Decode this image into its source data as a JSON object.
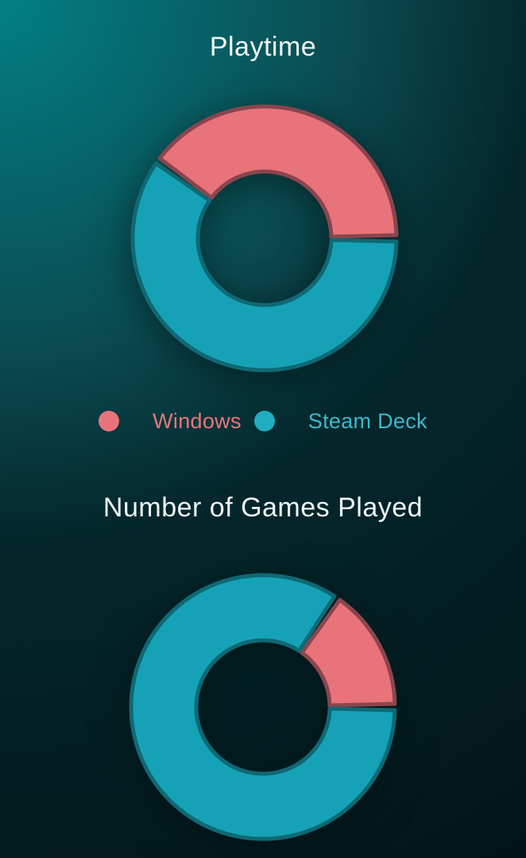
{
  "page": {
    "background_colors": {
      "glow_top_left": "#028084",
      "mid": "#0a4a50",
      "bottom": "#011518"
    }
  },
  "legend": {
    "items": [
      {
        "label": "Windows",
        "dot_color": "#e8737b",
        "text_color": "#e8767e"
      },
      {
        "label": "Steam Deck",
        "dot_color": "#21adc1",
        "text_color": "#3db9cd"
      }
    ]
  },
  "chart_data": [
    {
      "type": "pie",
      "subtype": "donut",
      "title": "Playtime",
      "categories": [
        "Windows",
        "Steam Deck"
      ],
      "values": [
        40,
        60
      ],
      "unit": "percent (estimated from arc angles; no numeric labels shown)",
      "series_colors": [
        "#e9737b",
        "#16a2b6"
      ],
      "series_stroke_colors": [
        "#8a454e",
        "#0e6974"
      ],
      "rotation_deg": -54,
      "legend_position": "bottom",
      "data_labels_shown": false
    },
    {
      "type": "pie",
      "subtype": "donut",
      "title": "Number of Games Played",
      "categories": [
        "Windows",
        "Steam Deck"
      ],
      "values": [
        15.5,
        84.5
      ],
      "unit": "percent (estimated from arc angles; no numeric labels shown)",
      "series_colors": [
        "#e9737b",
        "#16a2b6"
      ],
      "series_stroke_colors": [
        "#8a454e",
        "#0e6974"
      ],
      "rotation_deg": 34.2,
      "legend_position": "none",
      "data_labels_shown": false
    }
  ]
}
